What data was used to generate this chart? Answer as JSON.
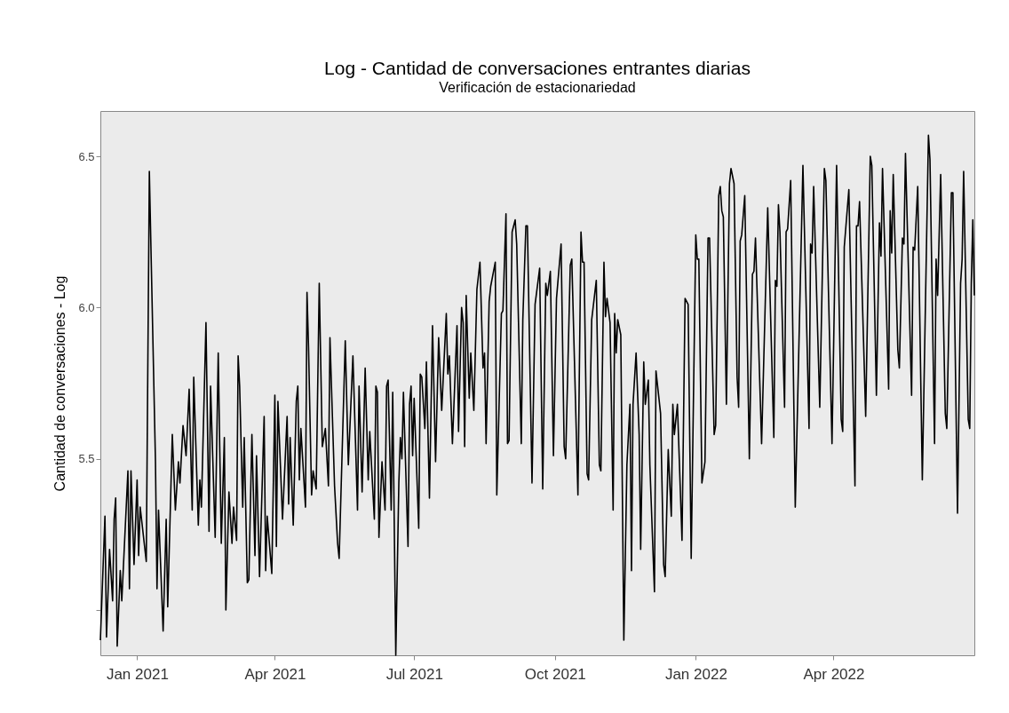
{
  "chart_data": {
    "type": "line",
    "title": "Log - Cantidad de conversaciones entrantes diarias",
    "subtitle": "Verificación de estacionariedad",
    "ylabel": "Cantidad de conversaciones - Log",
    "grid": false,
    "marker": "none",
    "line_style": "solid",
    "xlim": [
      "2020-12-08",
      "2022-07-02"
    ],
    "xticks": [
      {
        "value": "2021-01-01",
        "label": "Jan 2021"
      },
      {
        "value": "2021-04-01",
        "label": "Apr 2021"
      },
      {
        "value": "2021-07-01",
        "label": "Jul 2021"
      },
      {
        "value": "2021-10-01",
        "label": "Oct 2021"
      },
      {
        "value": "2022-01-01",
        "label": "Jan 2022"
      },
      {
        "value": "2022-04-01",
        "label": "Apr 2022"
      }
    ],
    "ylim": [
      4.85,
      6.65
    ],
    "yticks": [
      {
        "value": 5.0,
        "label": null
      },
      5.5,
      {
        "value": 6.0,
        "label": "6.0"
      },
      6.5
    ],
    "x": [
      "2020-12-08",
      "2020-12-11",
      "2020-12-12",
      "2020-12-14",
      "2020-12-16",
      "2020-12-17",
      "2020-12-18",
      "2020-12-19",
      "2020-12-21",
      "2020-12-22",
      "2020-12-26",
      "2020-12-27",
      "2020-12-28",
      "2020-12-30",
      "2021-01-01",
      "2021-01-02",
      "2021-01-03",
      "2021-01-07",
      "2021-01-09",
      "2021-01-13",
      "2021-01-14",
      "2021-01-15",
      "2021-01-18",
      "2021-01-20",
      "2021-01-21",
      "2021-01-24",
      "2021-01-26",
      "2021-01-28",
      "2021-01-29",
      "2021-01-31",
      "2021-02-02",
      "2021-02-04",
      "2021-02-06",
      "2021-02-07",
      "2021-02-10",
      "2021-02-11",
      "2021-02-12",
      "2021-02-15",
      "2021-02-17",
      "2021-02-18",
      "2021-02-21",
      "2021-02-23",
      "2021-02-25",
      "2021-02-27",
      "2021-02-28",
      "2021-03-02",
      "2021-03-04",
      "2021-03-05",
      "2021-03-07",
      "2021-03-08",
      "2021-03-09",
      "2021-03-11",
      "2021-03-12",
      "2021-03-14",
      "2021-03-15",
      "2021-03-17",
      "2021-03-19",
      "2021-03-20",
      "2021-03-22",
      "2021-03-25",
      "2021-03-26",
      "2021-03-27",
      "2021-03-30",
      "2021-04-01",
      "2021-04-02",
      "2021-04-03",
      "2021-04-06",
      "2021-04-09",
      "2021-04-10",
      "2021-04-11",
      "2021-04-13",
      "2021-04-15",
      "2021-04-16",
      "2021-04-17",
      "2021-04-18",
      "2021-04-21",
      "2021-04-22",
      "2021-04-23",
      "2021-04-25",
      "2021-04-26",
      "2021-04-28",
      "2021-04-30",
      "2021-05-02",
      "2021-05-04",
      "2021-05-06",
      "2021-05-07",
      "2021-05-10",
      "2021-05-12",
      "2021-05-13",
      "2021-05-17",
      "2021-05-19",
      "2021-05-22",
      "2021-05-25",
      "2021-05-26",
      "2021-05-28",
      "2021-05-30",
      "2021-06-01",
      "2021-06-02",
      "2021-06-05",
      "2021-06-06",
      "2021-06-07",
      "2021-06-08",
      "2021-06-10",
      "2021-06-12",
      "2021-06-13",
      "2021-06-14",
      "2021-06-16",
      "2021-06-17",
      "2021-06-19",
      "2021-06-21",
      "2021-06-22",
      "2021-06-23",
      "2021-06-24",
      "2021-06-27",
      "2021-06-28",
      "2021-06-29",
      "2021-06-30",
      "2021-07-01",
      "2021-07-04",
      "2021-07-05",
      "2021-07-06",
      "2021-07-08",
      "2021-07-09",
      "2021-07-11",
      "2021-07-13",
      "2021-07-15",
      "2021-07-17",
      "2021-07-19",
      "2021-07-22",
      "2021-07-23",
      "2021-07-24",
      "2021-07-26",
      "2021-07-29",
      "2021-07-30",
      "2021-08-01",
      "2021-08-02",
      "2021-08-03",
      "2021-08-04",
      "2021-08-06",
      "2021-08-07",
      "2021-08-09",
      "2021-08-11",
      "2021-08-13",
      "2021-08-15",
      "2021-08-16",
      "2021-08-17",
      "2021-08-19",
      "2021-08-20",
      "2021-08-23",
      "2021-08-24",
      "2021-08-27",
      "2021-08-28",
      "2021-08-30",
      "2021-08-31",
      "2021-09-01",
      "2021-09-03",
      "2021-09-05",
      "2021-09-06",
      "2021-09-09",
      "2021-09-10",
      "2021-09-12",
      "2021-09-13",
      "2021-09-16",
      "2021-09-18",
      "2021-09-21",
      "2021-09-23",
      "2021-09-25",
      "2021-09-26",
      "2021-09-28",
      "2021-09-30",
      "2021-10-02",
      "2021-10-05",
      "2021-10-07",
      "2021-10-08",
      "2021-10-11",
      "2021-10-12",
      "2021-10-16",
      "2021-10-18",
      "2021-10-19",
      "2021-10-20",
      "2021-10-22",
      "2021-10-23",
      "2021-10-25",
      "2021-10-28",
      "2021-10-30",
      "2021-10-31",
      "2021-11-02",
      "2021-11-03",
      "2021-11-04",
      "2021-11-06",
      "2021-11-08",
      "2021-11-09",
      "2021-11-10",
      "2021-11-11",
      "2021-11-13",
      "2021-11-15",
      "2021-11-17",
      "2021-11-19",
      "2021-11-20",
      "2021-11-21",
      "2021-11-23",
      "2021-11-25",
      "2021-11-26",
      "2021-11-28",
      "2021-11-29",
      "2021-12-01",
      "2021-12-02",
      "2021-12-05",
      "2021-12-06",
      "2021-12-09",
      "2021-12-11",
      "2021-12-12",
      "2021-12-14",
      "2021-12-16",
      "2021-12-17",
      "2021-12-18",
      "2021-12-20",
      "2021-12-23",
      "2021-12-25",
      "2021-12-27",
      "2021-12-29",
      "2022-01-01",
      "2022-01-02",
      "2022-01-03",
      "2022-01-05",
      "2022-01-07",
      "2022-01-09",
      "2022-01-10",
      "2022-01-13",
      "2022-01-14",
      "2022-01-16",
      "2022-01-17",
      "2022-01-18",
      "2022-01-19",
      "2022-01-21",
      "2022-01-23",
      "2022-01-24",
      "2022-01-26",
      "2022-01-28",
      "2022-01-29",
      "2022-01-30",
      "2022-01-31",
      "2022-02-02",
      "2022-02-05",
      "2022-02-07",
      "2022-02-08",
      "2022-02-09",
      "2022-02-13",
      "2022-02-17",
      "2022-02-21",
      "2022-02-22",
      "2022-02-23",
      "2022-02-24",
      "2022-02-25",
      "2022-02-28",
      "2022-03-01",
      "2022-03-02",
      "2022-03-04",
      "2022-03-07",
      "2022-03-12",
      "2022-03-16",
      "2022-03-17",
      "2022-03-18",
      "2022-03-19",
      "2022-03-23",
      "2022-03-26",
      "2022-03-27",
      "2022-03-31",
      "2022-04-03",
      "2022-04-06",
      "2022-04-07",
      "2022-04-08",
      "2022-04-11",
      "2022-04-15",
      "2022-04-16",
      "2022-04-17",
      "2022-04-18",
      "2022-04-22",
      "2022-04-25",
      "2022-04-26",
      "2022-04-29",
      "2022-05-01",
      "2022-05-02",
      "2022-05-03",
      "2022-05-07",
      "2022-05-08",
      "2022-05-09",
      "2022-05-10",
      "2022-05-13",
      "2022-05-14",
      "2022-05-16",
      "2022-05-17",
      "2022-05-18",
      "2022-05-22",
      "2022-05-23",
      "2022-05-24",
      "2022-05-26",
      "2022-05-29",
      "2022-06-02",
      "2022-06-03",
      "2022-06-06",
      "2022-06-07",
      "2022-06-08",
      "2022-06-10",
      "2022-06-13",
      "2022-06-14",
      "2022-06-17",
      "2022-06-18",
      "2022-06-21",
      "2022-06-23",
      "2022-06-24",
      "2022-06-25",
      "2022-06-28",
      "2022-06-29",
      "2022-06-30",
      "2022-07-01",
      "2022-07-02"
    ],
    "series": [
      {
        "color": "#000000",
        "values": [
          4.9,
          5.31,
          4.91,
          5.2,
          5.03,
          5.3,
          5.37,
          4.88,
          5.13,
          5.03,
          5.46,
          5.07,
          5.46,
          5.15,
          5.43,
          5.18,
          5.34,
          5.16,
          6.45,
          5.49,
          5.07,
          5.33,
          4.93,
          5.3,
          5.01,
          5.58,
          5.33,
          5.49,
          5.42,
          5.61,
          5.51,
          5.73,
          5.33,
          5.77,
          5.28,
          5.43,
          5.34,
          5.95,
          5.26,
          5.74,
          5.24,
          5.85,
          5.22,
          5.57,
          5.0,
          5.39,
          5.22,
          5.34,
          5.23,
          5.84,
          5.74,
          5.34,
          5.57,
          5.09,
          5.1,
          5.58,
          5.18,
          5.51,
          5.11,
          5.64,
          5.13,
          5.31,
          5.12,
          5.71,
          5.21,
          5.69,
          5.3,
          5.64,
          5.35,
          5.57,
          5.28,
          5.69,
          5.74,
          5.43,
          5.6,
          5.34,
          6.05,
          5.87,
          5.38,
          5.46,
          5.4,
          6.08,
          5.54,
          5.6,
          5.41,
          5.9,
          5.41,
          5.22,
          5.17,
          5.89,
          5.48,
          5.84,
          5.33,
          5.74,
          5.39,
          5.8,
          5.43,
          5.59,
          5.3,
          5.74,
          5.72,
          5.24,
          5.49,
          5.33,
          5.74,
          5.76,
          5.33,
          5.72,
          4.85,
          5.42,
          5.57,
          5.5,
          5.72,
          5.21,
          5.68,
          5.74,
          5.51,
          5.7,
          5.27,
          5.78,
          5.77,
          5.6,
          5.82,
          5.37,
          5.94,
          5.49,
          5.9,
          5.66,
          5.98,
          5.78,
          5.84,
          5.55,
          5.94,
          5.59,
          6.0,
          5.95,
          5.54,
          6.04,
          5.7,
          5.85,
          5.66,
          6.06,
          6.15,
          5.8,
          5.85,
          5.55,
          6.02,
          6.07,
          6.15,
          5.38,
          5.98,
          5.99,
          6.31,
          5.55,
          5.56,
          6.25,
          6.29,
          6.21,
          5.55,
          5.96,
          6.27,
          6.27,
          5.42,
          6.01,
          6.13,
          5.4,
          6.08,
          6.04,
          6.12,
          5.51,
          6.03,
          6.21,
          5.54,
          5.5,
          6.14,
          6.16,
          5.38,
          6.25,
          6.15,
          6.15,
          5.45,
          5.43,
          5.96,
          6.09,
          5.48,
          5.46,
          6.15,
          5.97,
          6.03,
          5.95,
          5.33,
          5.98,
          5.85,
          5.96,
          5.91,
          4.9,
          5.48,
          5.68,
          5.13,
          5.68,
          5.85,
          5.58,
          5.2,
          5.82,
          5.68,
          5.76,
          5.48,
          5.06,
          5.79,
          5.65,
          5.15,
          5.11,
          5.53,
          5.31,
          5.68,
          5.58,
          5.68,
          5.23,
          6.03,
          6.01,
          5.17,
          6.24,
          6.16,
          6.16,
          5.42,
          5.49,
          6.23,
          6.23,
          5.58,
          5.61,
          6.37,
          6.4,
          6.32,
          6.3,
          5.68,
          6.41,
          6.46,
          6.41,
          5.77,
          5.67,
          6.22,
          6.24,
          6.37,
          5.5,
          6.11,
          6.12,
          6.23,
          5.55,
          6.33,
          5.57,
          6.09,
          6.07,
          6.34,
          6.25,
          5.67,
          6.25,
          6.26,
          6.42,
          5.34,
          6.47,
          5.6,
          6.21,
          6.18,
          6.4,
          5.67,
          6.46,
          6.42,
          5.55,
          6.47,
          5.63,
          5.59,
          6.2,
          6.39,
          5.41,
          6.27,
          6.27,
          6.35,
          5.64,
          6.5,
          6.47,
          5.71,
          6.28,
          6.17,
          6.46,
          5.73,
          6.32,
          6.18,
          6.44,
          5.86,
          5.8,
          6.23,
          6.21,
          6.51,
          5.71,
          6.2,
          6.19,
          6.4,
          5.43,
          6.57,
          6.49,
          5.55,
          6.16,
          6.04,
          6.44,
          5.65,
          5.6,
          6.38,
          6.38,
          5.32,
          6.08,
          6.16,
          6.45,
          5.63,
          5.6,
          6.08,
          6.29,
          6.04
        ]
      }
    ]
  }
}
